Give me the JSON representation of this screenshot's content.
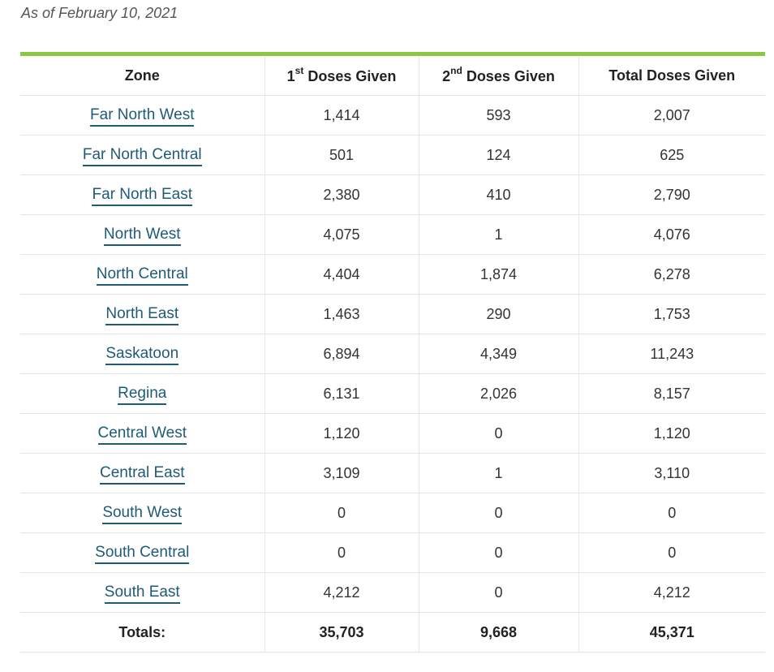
{
  "caption": "As of February 10, 2021",
  "colors": {
    "accent_bar": "#8dc63f",
    "link": "#1f5a78"
  },
  "table": {
    "headers": {
      "zone": "Zone",
      "first_num": "1",
      "first_sup": "st",
      "first_rest": " Doses Given",
      "second_num": "2",
      "second_sup": "nd",
      "second_rest": " Doses Given",
      "total": "Total Doses Given"
    },
    "rows": [
      {
        "zone": "Far North West",
        "first": "1,414",
        "second": "593",
        "total": "2,007"
      },
      {
        "zone": "Far North Central",
        "first": "501",
        "second": "124",
        "total": "625"
      },
      {
        "zone": "Far North East",
        "first": "2,380",
        "second": "410",
        "total": "2,790"
      },
      {
        "zone": "North West",
        "first": "4,075",
        "second": "1",
        "total": "4,076"
      },
      {
        "zone": "North Central",
        "first": "4,404",
        "second": "1,874",
        "total": "6,278"
      },
      {
        "zone": "North East",
        "first": "1,463",
        "second": "290",
        "total": "1,753"
      },
      {
        "zone": "Saskatoon",
        "first": "6,894",
        "second": "4,349",
        "total": "11,243"
      },
      {
        "zone": "Regina",
        "first": "6,131",
        "second": "2,026",
        "total": "8,157"
      },
      {
        "zone": "Central West",
        "first": "1,120",
        "second": "0",
        "total": "1,120"
      },
      {
        "zone": "Central East",
        "first": "3,109",
        "second": "1",
        "total": "3,110"
      },
      {
        "zone": "South West",
        "first": "0",
        "second": "0",
        "total": "0"
      },
      {
        "zone": "South Central",
        "first": "0",
        "second": "0",
        "total": "0"
      },
      {
        "zone": "South East",
        "first": "4,212",
        "second": "0",
        "total": "4,212"
      }
    ],
    "totals": {
      "label": "Totals:",
      "first": "35,703",
      "second": "9,668",
      "total": "45,371"
    }
  }
}
